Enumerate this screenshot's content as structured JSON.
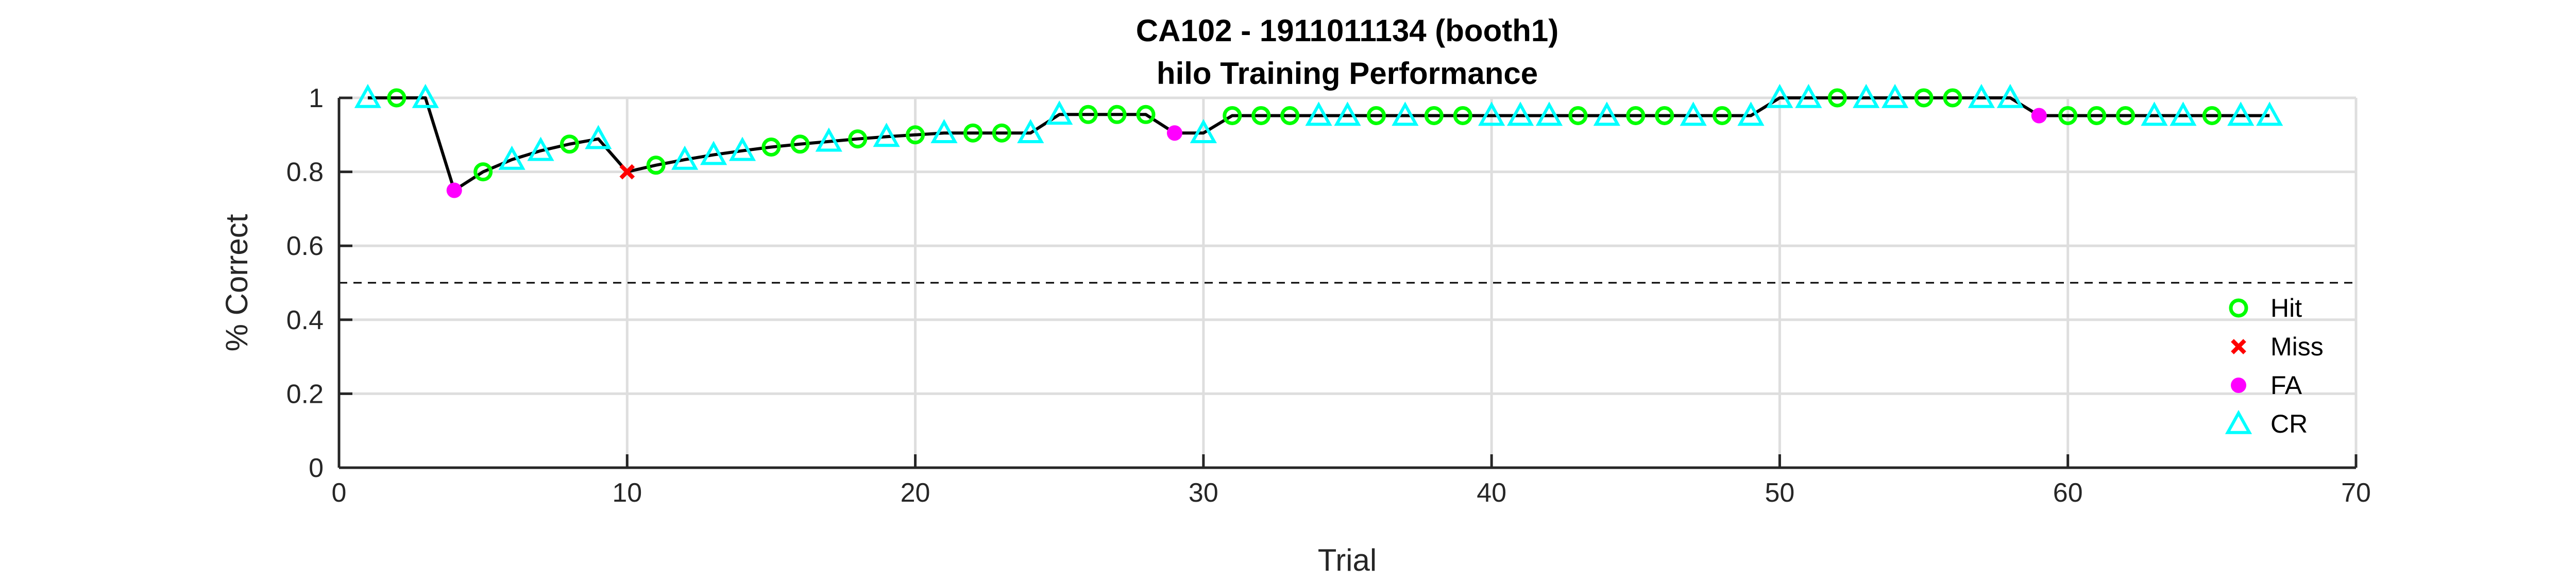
{
  "chart_data": {
    "type": "line",
    "title": "CA102 - 1911011134 (booth1)",
    "subtitle": "hilo Training Performance",
    "xlabel": "Trial",
    "ylabel": "% Correct",
    "xlim": [
      0,
      70
    ],
    "ylim": [
      0,
      1
    ],
    "xticks": [
      0,
      10,
      20,
      30,
      40,
      50,
      60,
      70
    ],
    "yticks": [
      0,
      0.2,
      0.4,
      0.6,
      0.8,
      1
    ],
    "grid": true,
    "legend_position": "bottom-right",
    "reference_line": 0.5,
    "line_color": "#000000",
    "x": [
      1,
      2,
      3,
      4,
      5,
      6,
      7,
      8,
      9,
      10,
      11,
      12,
      13,
      14,
      15,
      16,
      17,
      18,
      19,
      20,
      21,
      22,
      23,
      24,
      25,
      26,
      27,
      28,
      29,
      30,
      31,
      32,
      33,
      34,
      35,
      36,
      37,
      38,
      39,
      40,
      41,
      42,
      43,
      44,
      45,
      46,
      47,
      48,
      49,
      50,
      51,
      52,
      53,
      54,
      55,
      56,
      57,
      58,
      59,
      60,
      61,
      62,
      63,
      64,
      65,
      66,
      67
    ],
    "y": [
      1,
      1,
      1,
      0.75,
      0.8,
      0.833,
      0.857,
      0.875,
      0.889,
      0.8,
      0.818,
      0.833,
      0.846,
      0.857,
      0.867,
      0.875,
      0.882,
      0.889,
      0.895,
      0.9,
      0.905,
      0.905,
      0.905,
      0.905,
      0.955,
      0.955,
      0.955,
      0.955,
      0.905,
      0.905,
      0.952,
      0.952,
      0.952,
      0.952,
      0.952,
      0.952,
      0.952,
      0.952,
      0.952,
      0.952,
      0.952,
      0.952,
      0.952,
      0.952,
      0.952,
      0.952,
      0.952,
      0.952,
      0.952,
      1,
      1,
      1,
      1,
      1,
      1,
      1,
      1,
      1,
      0.952,
      0.952,
      0.952,
      0.952,
      0.952,
      0.952,
      0.952,
      0.952,
      0.952
    ],
    "outcomes": [
      "CR",
      "Hit",
      "CR",
      "FA",
      "Hit",
      "CR",
      "CR",
      "Hit",
      "CR",
      "Miss",
      "Hit",
      "CR",
      "CR",
      "CR",
      "Hit",
      "Hit",
      "CR",
      "Hit",
      "CR",
      "Hit",
      "CR",
      "Hit",
      "Hit",
      "CR",
      "CR",
      "Hit",
      "Hit",
      "Hit",
      "FA",
      "CR",
      "Hit",
      "Hit",
      "Hit",
      "CR",
      "CR",
      "Hit",
      "CR",
      "Hit",
      "Hit",
      "CR",
      "CR",
      "CR",
      "Hit",
      "CR",
      "Hit",
      "Hit",
      "CR",
      "Hit",
      "CR",
      "CR",
      "CR",
      "Hit",
      "CR",
      "CR",
      "Hit",
      "Hit",
      "CR",
      "CR",
      "FA",
      "Hit",
      "Hit",
      "Hit",
      "CR",
      "CR",
      "Hit",
      "CR",
      "CR"
    ],
    "legend": [
      {
        "key": "Hit",
        "label": "Hit",
        "marker": "circle-open",
        "color": "#00ff00"
      },
      {
        "key": "Miss",
        "label": "Miss",
        "marker": "x",
        "color": "#ff0000"
      },
      {
        "key": "FA",
        "label": "FA",
        "marker": "dot",
        "color": "#ff00ff"
      },
      {
        "key": "CR",
        "label": "CR",
        "marker": "triangle",
        "color": "#00ffff"
      }
    ]
  }
}
